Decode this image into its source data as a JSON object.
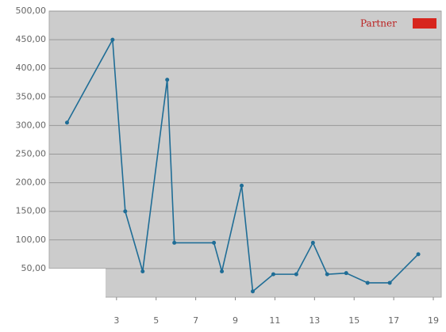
{
  "chart_data": {
    "type": "line",
    "x": [
      0.5,
      2.8,
      3.44,
      4.32,
      5.56,
      5.92,
      7.92,
      8.32,
      9.32,
      9.88,
      10.92,
      12.08,
      12.92,
      13.64,
      14.6,
      15.68,
      16.8,
      18.24
    ],
    "series": [
      {
        "color": "#1f6d96",
        "values": [
          305,
          450,
          150,
          45,
          380,
          95,
          95,
          45,
          195,
          10,
          40,
          40,
          95,
          40,
          42,
          25,
          25,
          75
        ]
      }
    ],
    "xlim": [
      -0.4,
      19.4
    ],
    "xticks": [
      3,
      5,
      7,
      9,
      11,
      13,
      15,
      17,
      19
    ],
    "ylim": [
      0,
      500
    ],
    "yticks": [
      {
        "value": 50,
        "label": "50,00"
      },
      {
        "value": 100,
        "label": "100,00"
      },
      {
        "value": 150,
        "label": "150,00"
      },
      {
        "value": 200,
        "label": "200,00"
      },
      {
        "value": 250,
        "label": "250,00"
      },
      {
        "value": 300,
        "label": "300,00"
      },
      {
        "value": 350,
        "label": "350,00"
      },
      {
        "value": 400,
        "label": "400,00"
      },
      {
        "value": 450,
        "label": "450,00"
      },
      {
        "value": 500,
        "label": "500,00"
      }
    ],
    "grid": true,
    "watermark": "Partner"
  }
}
